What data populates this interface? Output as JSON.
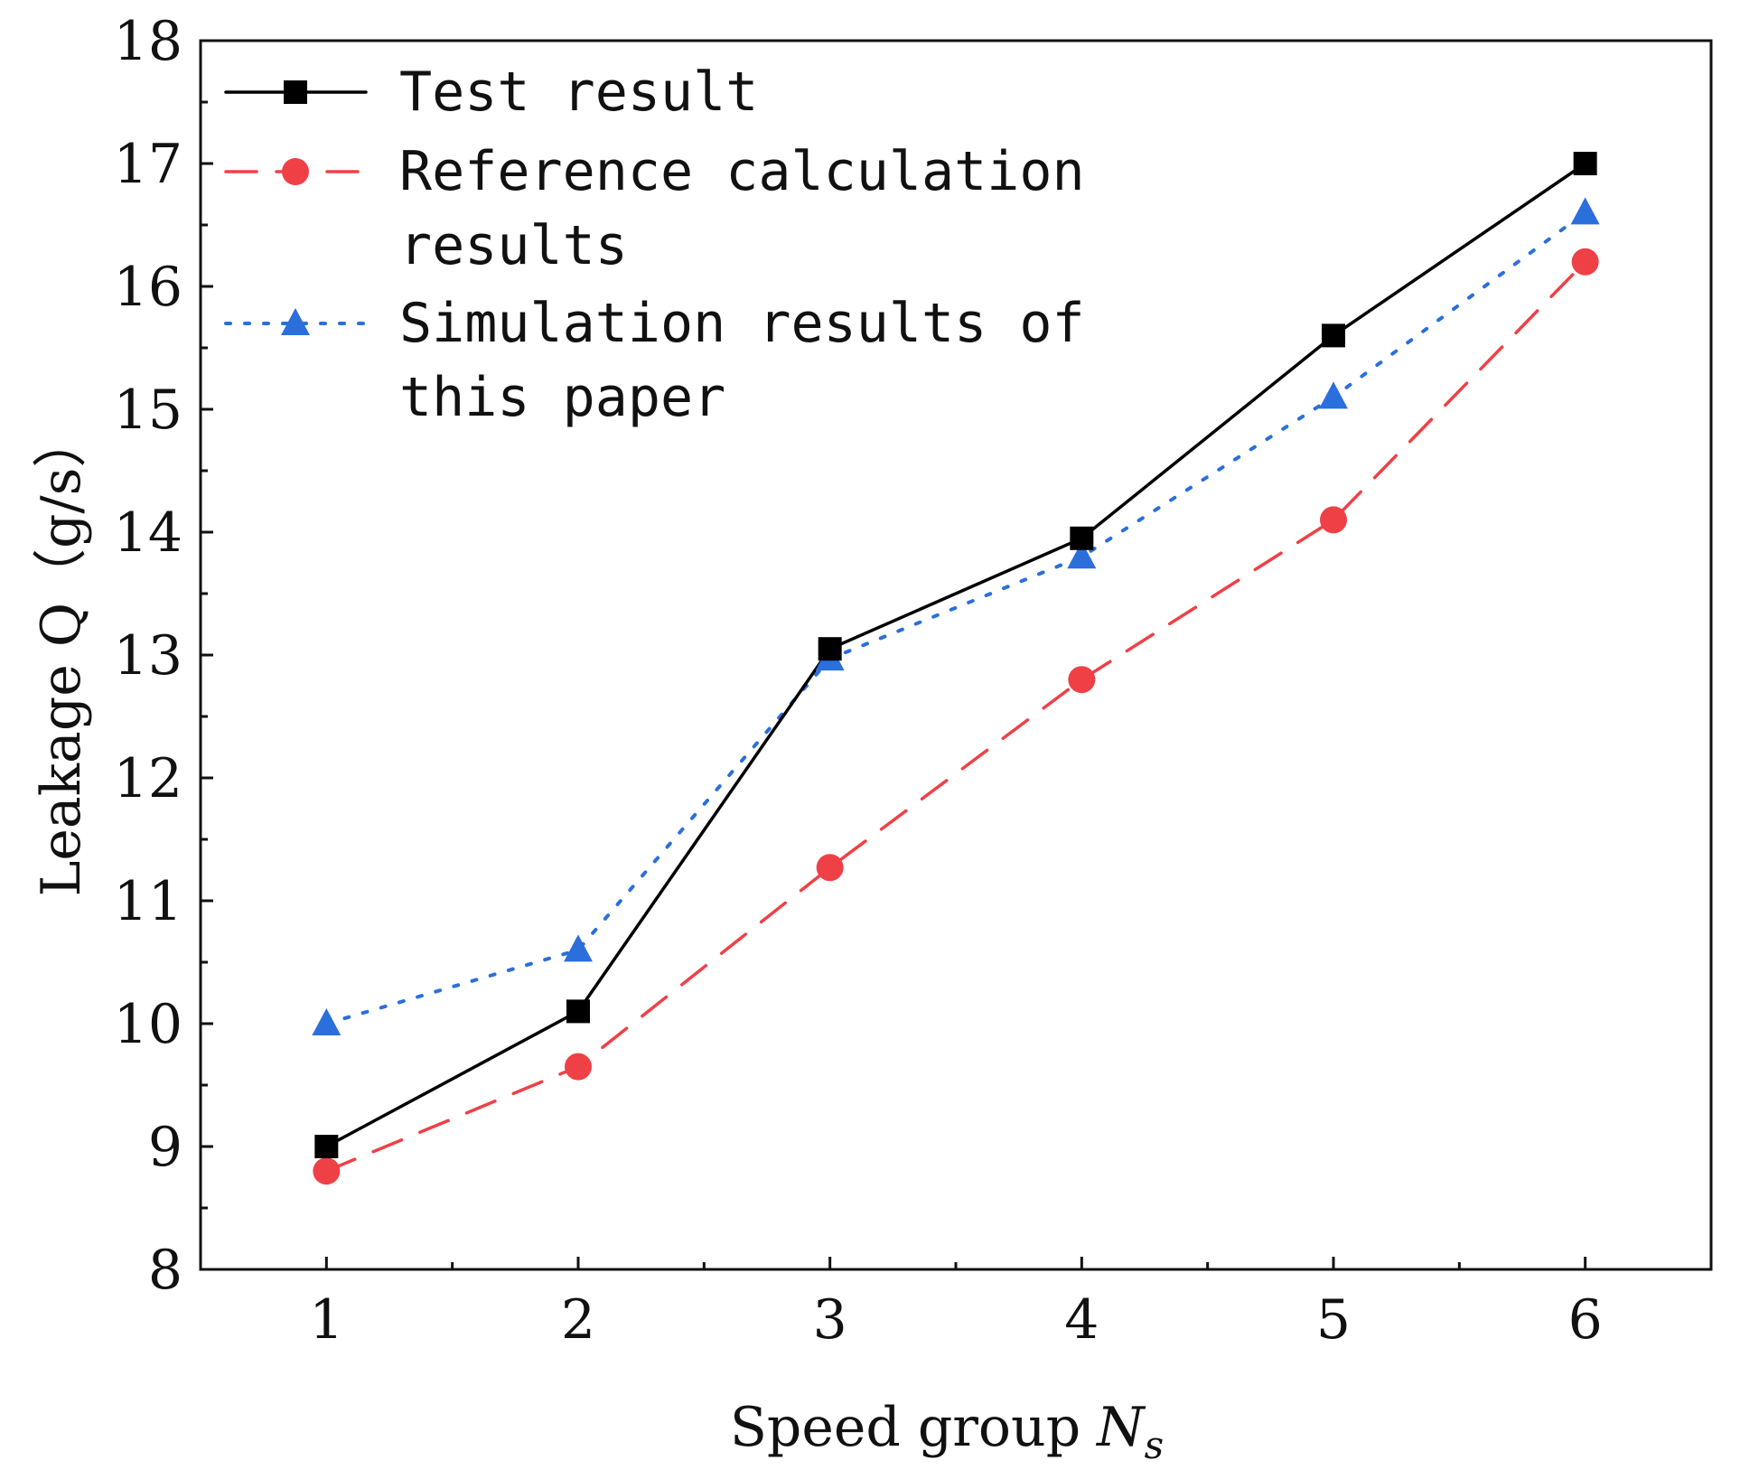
{
  "chart_data": {
    "type": "line",
    "title": "",
    "xlabel": "Speed group",
    "xlabel_symbol": "N",
    "xlabel_subscript": "s",
    "ylabel": "Leakage Q（g/s）",
    "categories": [
      "1",
      "2",
      "3",
      "4",
      "5",
      "6"
    ],
    "x": [
      1,
      2,
      3,
      4,
      5,
      6
    ],
    "xlim": [
      0.5,
      6.5
    ],
    "ylim": [
      8,
      18
    ],
    "yticks": [
      8,
      9,
      10,
      11,
      12,
      13,
      14,
      15,
      16,
      17,
      18
    ],
    "grid": false,
    "legend_position": "top-left",
    "series": [
      {
        "name": "Test result",
        "legend_lines": [
          "Test result"
        ],
        "values": [
          9.0,
          10.1,
          13.05,
          13.95,
          15.6,
          17.0
        ],
        "color": "#000000",
        "line_style": "solid",
        "marker": "square"
      },
      {
        "name": "Reference calculation results",
        "legend_lines": [
          "Reference calculation",
          "results"
        ],
        "values": [
          8.8,
          9.65,
          11.27,
          12.8,
          14.1,
          16.2
        ],
        "color": "#ef4046",
        "line_style": "dashed",
        "marker": "circle"
      },
      {
        "name": "Simulation results of this paper",
        "legend_lines": [
          "Simulation results of",
          "this paper"
        ],
        "values": [
          10.0,
          10.6,
          12.97,
          13.8,
          15.1,
          16.6
        ],
        "color": "#2a6fdb",
        "line_style": "dotted",
        "marker": "triangle"
      }
    ]
  }
}
